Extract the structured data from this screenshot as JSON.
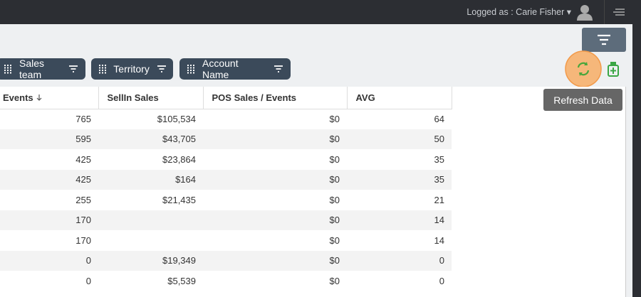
{
  "header": {
    "user": "Logged as : Carie Fisher"
  },
  "filters": [
    "Sales team",
    "Territory",
    "Account Name"
  ],
  "tooltip": "Refresh Data",
  "table": {
    "columns": [
      "Events",
      "SellIn Sales",
      "POS Sales / Events",
      "AVG"
    ],
    "rows": [
      [
        "765",
        "$105,534",
        "$0",
        "64"
      ],
      [
        "595",
        "$43,705",
        "$0",
        "50"
      ],
      [
        "425",
        "$23,864",
        "$0",
        "35"
      ],
      [
        "425",
        "$164",
        "$0",
        "35"
      ],
      [
        "255",
        "$21,435",
        "$0",
        "21"
      ],
      [
        "170",
        null,
        "$0",
        "14"
      ],
      [
        "170",
        null,
        "$0",
        "14"
      ],
      [
        "0",
        "$19,349",
        "$0",
        "0"
      ],
      [
        "0",
        "$5,539",
        "$0",
        "0"
      ]
    ]
  }
}
